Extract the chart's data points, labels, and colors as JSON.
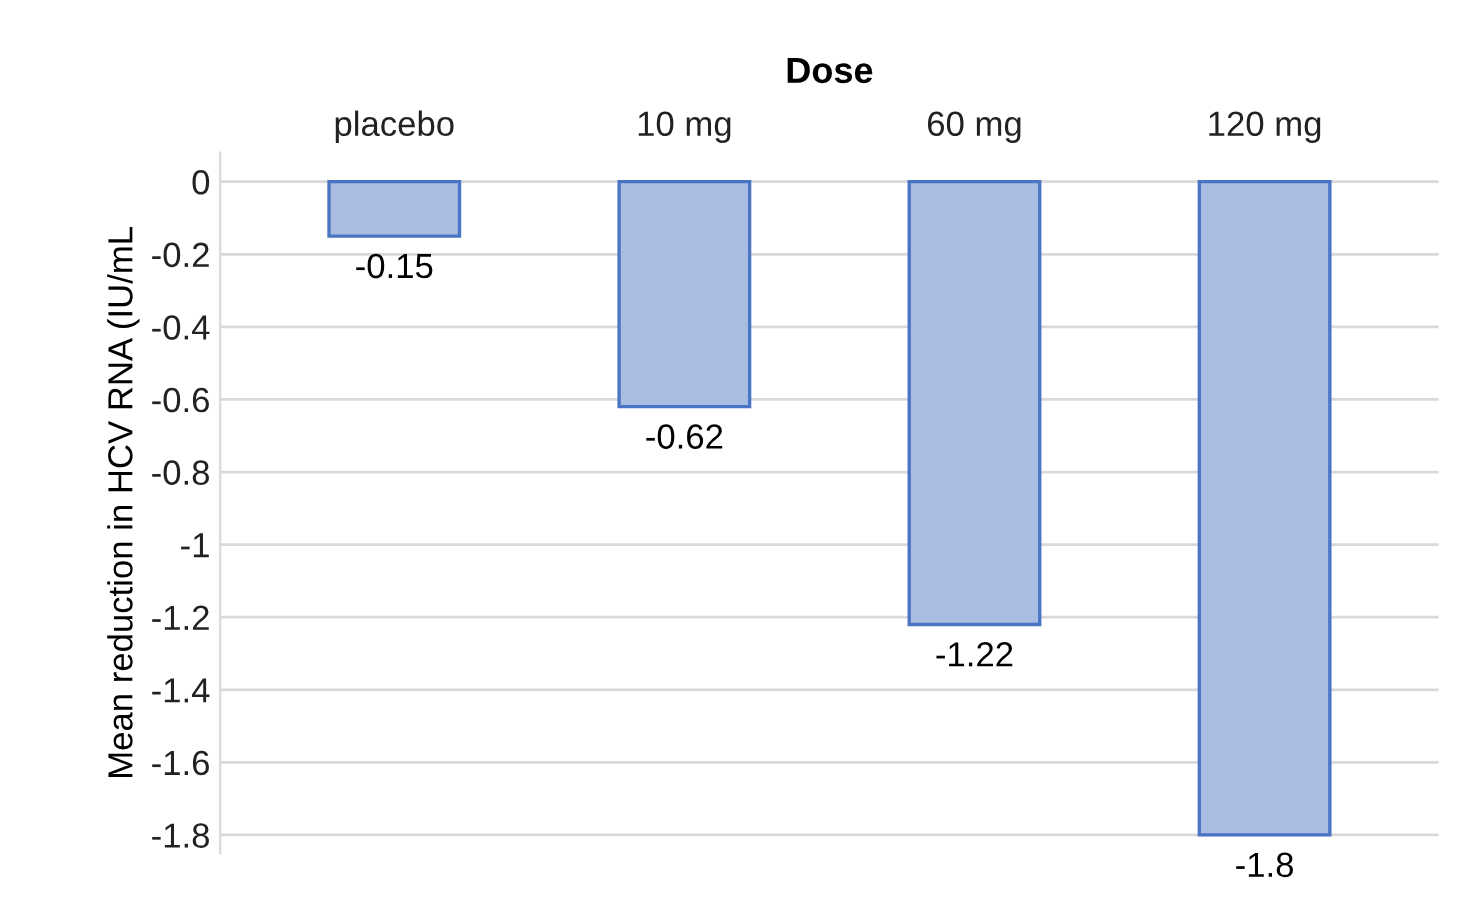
{
  "chart_data": {
    "type": "bar",
    "xlabel": "Dose",
    "ylabel": "Mean reduction in HCV RNA (IU/mL",
    "categories": [
      "placebo",
      "10 mg",
      "60 mg",
      "120 mg"
    ],
    "values": [
      -0.15,
      -0.62,
      -1.22,
      -1.8
    ],
    "color": "#a9bde3",
    "ylim": [
      -1.85,
      0.08
    ],
    "yticks": [
      0,
      -0.2,
      -0.4,
      -0.6,
      -0.8,
      -1,
      -1.2,
      -1.4,
      -1.6,
      -1.8
    ],
    "grid": "y",
    "data_labels": true
  }
}
